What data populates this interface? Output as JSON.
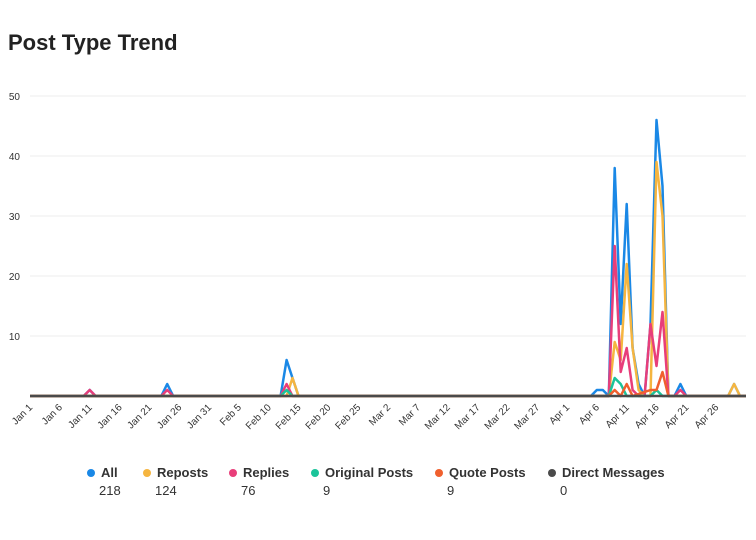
{
  "title": "Post Type Trend",
  "chart_data": {
    "type": "line",
    "title": "Post Type Trend",
    "xlabel": "",
    "ylabel": "",
    "ylim": [
      0,
      50
    ],
    "yticks": [
      10,
      20,
      30,
      40,
      50
    ],
    "grid": true,
    "legend_position": "bottom",
    "x_start": "Jan 1",
    "x_tick_labels": [
      "Jan 1",
      "Jan 6",
      "Jan 11",
      "Jan 16",
      "Jan 21",
      "Jan 26",
      "Jan 31",
      "Feb 5",
      "Feb 10",
      "Feb 15",
      "Feb 20",
      "Feb 25",
      "Mar 2",
      "Mar 7",
      "Mar 12",
      "Mar 17",
      "Mar 22",
      "Mar 27",
      "Apr 1",
      "Apr 6",
      "Apr 11",
      "Apr 16",
      "Apr 21",
      "Apr 26"
    ],
    "x_max_day": 120,
    "series": [
      {
        "name": "All",
        "color": "#1a88e6",
        "total": "218",
        "points": [
          [
            0,
            0
          ],
          [
            9,
            0
          ],
          [
            10,
            1
          ],
          [
            11,
            0
          ],
          [
            22,
            0
          ],
          [
            23,
            2
          ],
          [
            24,
            0
          ],
          [
            42,
            0
          ],
          [
            43,
            6
          ],
          [
            44,
            3
          ],
          [
            45,
            0
          ],
          [
            94,
            0
          ],
          [
            95,
            1
          ],
          [
            96,
            1
          ],
          [
            97,
            0
          ],
          [
            98,
            38
          ],
          [
            99,
            12
          ],
          [
            100,
            32
          ],
          [
            101,
            8
          ],
          [
            102,
            2
          ],
          [
            103,
            0
          ],
          [
            104,
            12
          ],
          [
            105,
            46
          ],
          [
            106,
            35
          ],
          [
            107,
            0
          ],
          [
            108,
            0
          ],
          [
            109,
            2
          ],
          [
            110,
            0
          ],
          [
            117,
            0
          ],
          [
            118,
            2
          ],
          [
            119,
            0
          ],
          [
            120,
            0
          ]
        ]
      },
      {
        "name": "Reposts",
        "color": "#f5b540",
        "total": "124",
        "points": [
          [
            0,
            0
          ],
          [
            43,
            0
          ],
          [
            44,
            3
          ],
          [
            45,
            0
          ],
          [
            96,
            0
          ],
          [
            97,
            0
          ],
          [
            98,
            9
          ],
          [
            99,
            6
          ],
          [
            100,
            22
          ],
          [
            101,
            8
          ],
          [
            102,
            1
          ],
          [
            103,
            0
          ],
          [
            104,
            0
          ],
          [
            105,
            39
          ],
          [
            106,
            30
          ],
          [
            107,
            0
          ],
          [
            117,
            0
          ],
          [
            118,
            2
          ],
          [
            119,
            0
          ],
          [
            120,
            0
          ]
        ]
      },
      {
        "name": "Replies",
        "color": "#e83e7a",
        "total": "76",
        "points": [
          [
            0,
            0
          ],
          [
            9,
            0
          ],
          [
            10,
            1
          ],
          [
            11,
            0
          ],
          [
            22,
            0
          ],
          [
            23,
            1
          ],
          [
            24,
            0
          ],
          [
            42,
            0
          ],
          [
            43,
            2
          ],
          [
            44,
            0
          ],
          [
            97,
            0
          ],
          [
            98,
            25
          ],
          [
            99,
            4
          ],
          [
            100,
            8
          ],
          [
            101,
            1
          ],
          [
            102,
            0
          ],
          [
            103,
            0
          ],
          [
            104,
            12
          ],
          [
            105,
            5
          ],
          [
            106,
            14
          ],
          [
            107,
            0
          ],
          [
            108,
            0
          ],
          [
            109,
            1
          ],
          [
            110,
            0
          ],
          [
            120,
            0
          ]
        ]
      },
      {
        "name": "Original Posts",
        "color": "#1bc49a",
        "total": "9",
        "points": [
          [
            0,
            0
          ],
          [
            42,
            0
          ],
          [
            43,
            1
          ],
          [
            44,
            0
          ],
          [
            96,
            0
          ],
          [
            97,
            0
          ],
          [
            98,
            3
          ],
          [
            99,
            2
          ],
          [
            100,
            0
          ],
          [
            104,
            0
          ],
          [
            105,
            1
          ],
          [
            106,
            0
          ],
          [
            120,
            0
          ]
        ]
      },
      {
        "name": "Quote Posts",
        "color": "#f0602e",
        "total": "9",
        "points": [
          [
            0,
            0
          ],
          [
            97,
            0
          ],
          [
            98,
            1
          ],
          [
            99,
            0
          ],
          [
            100,
            2
          ],
          [
            101,
            0
          ],
          [
            104,
            1
          ],
          [
            105,
            1
          ],
          [
            106,
            4
          ],
          [
            107,
            0
          ],
          [
            120,
            0
          ]
        ]
      },
      {
        "name": "Direct Messages",
        "color": "#4a4a4a",
        "total": "0",
        "points": [
          [
            0,
            0
          ],
          [
            120,
            0
          ]
        ]
      }
    ]
  }
}
